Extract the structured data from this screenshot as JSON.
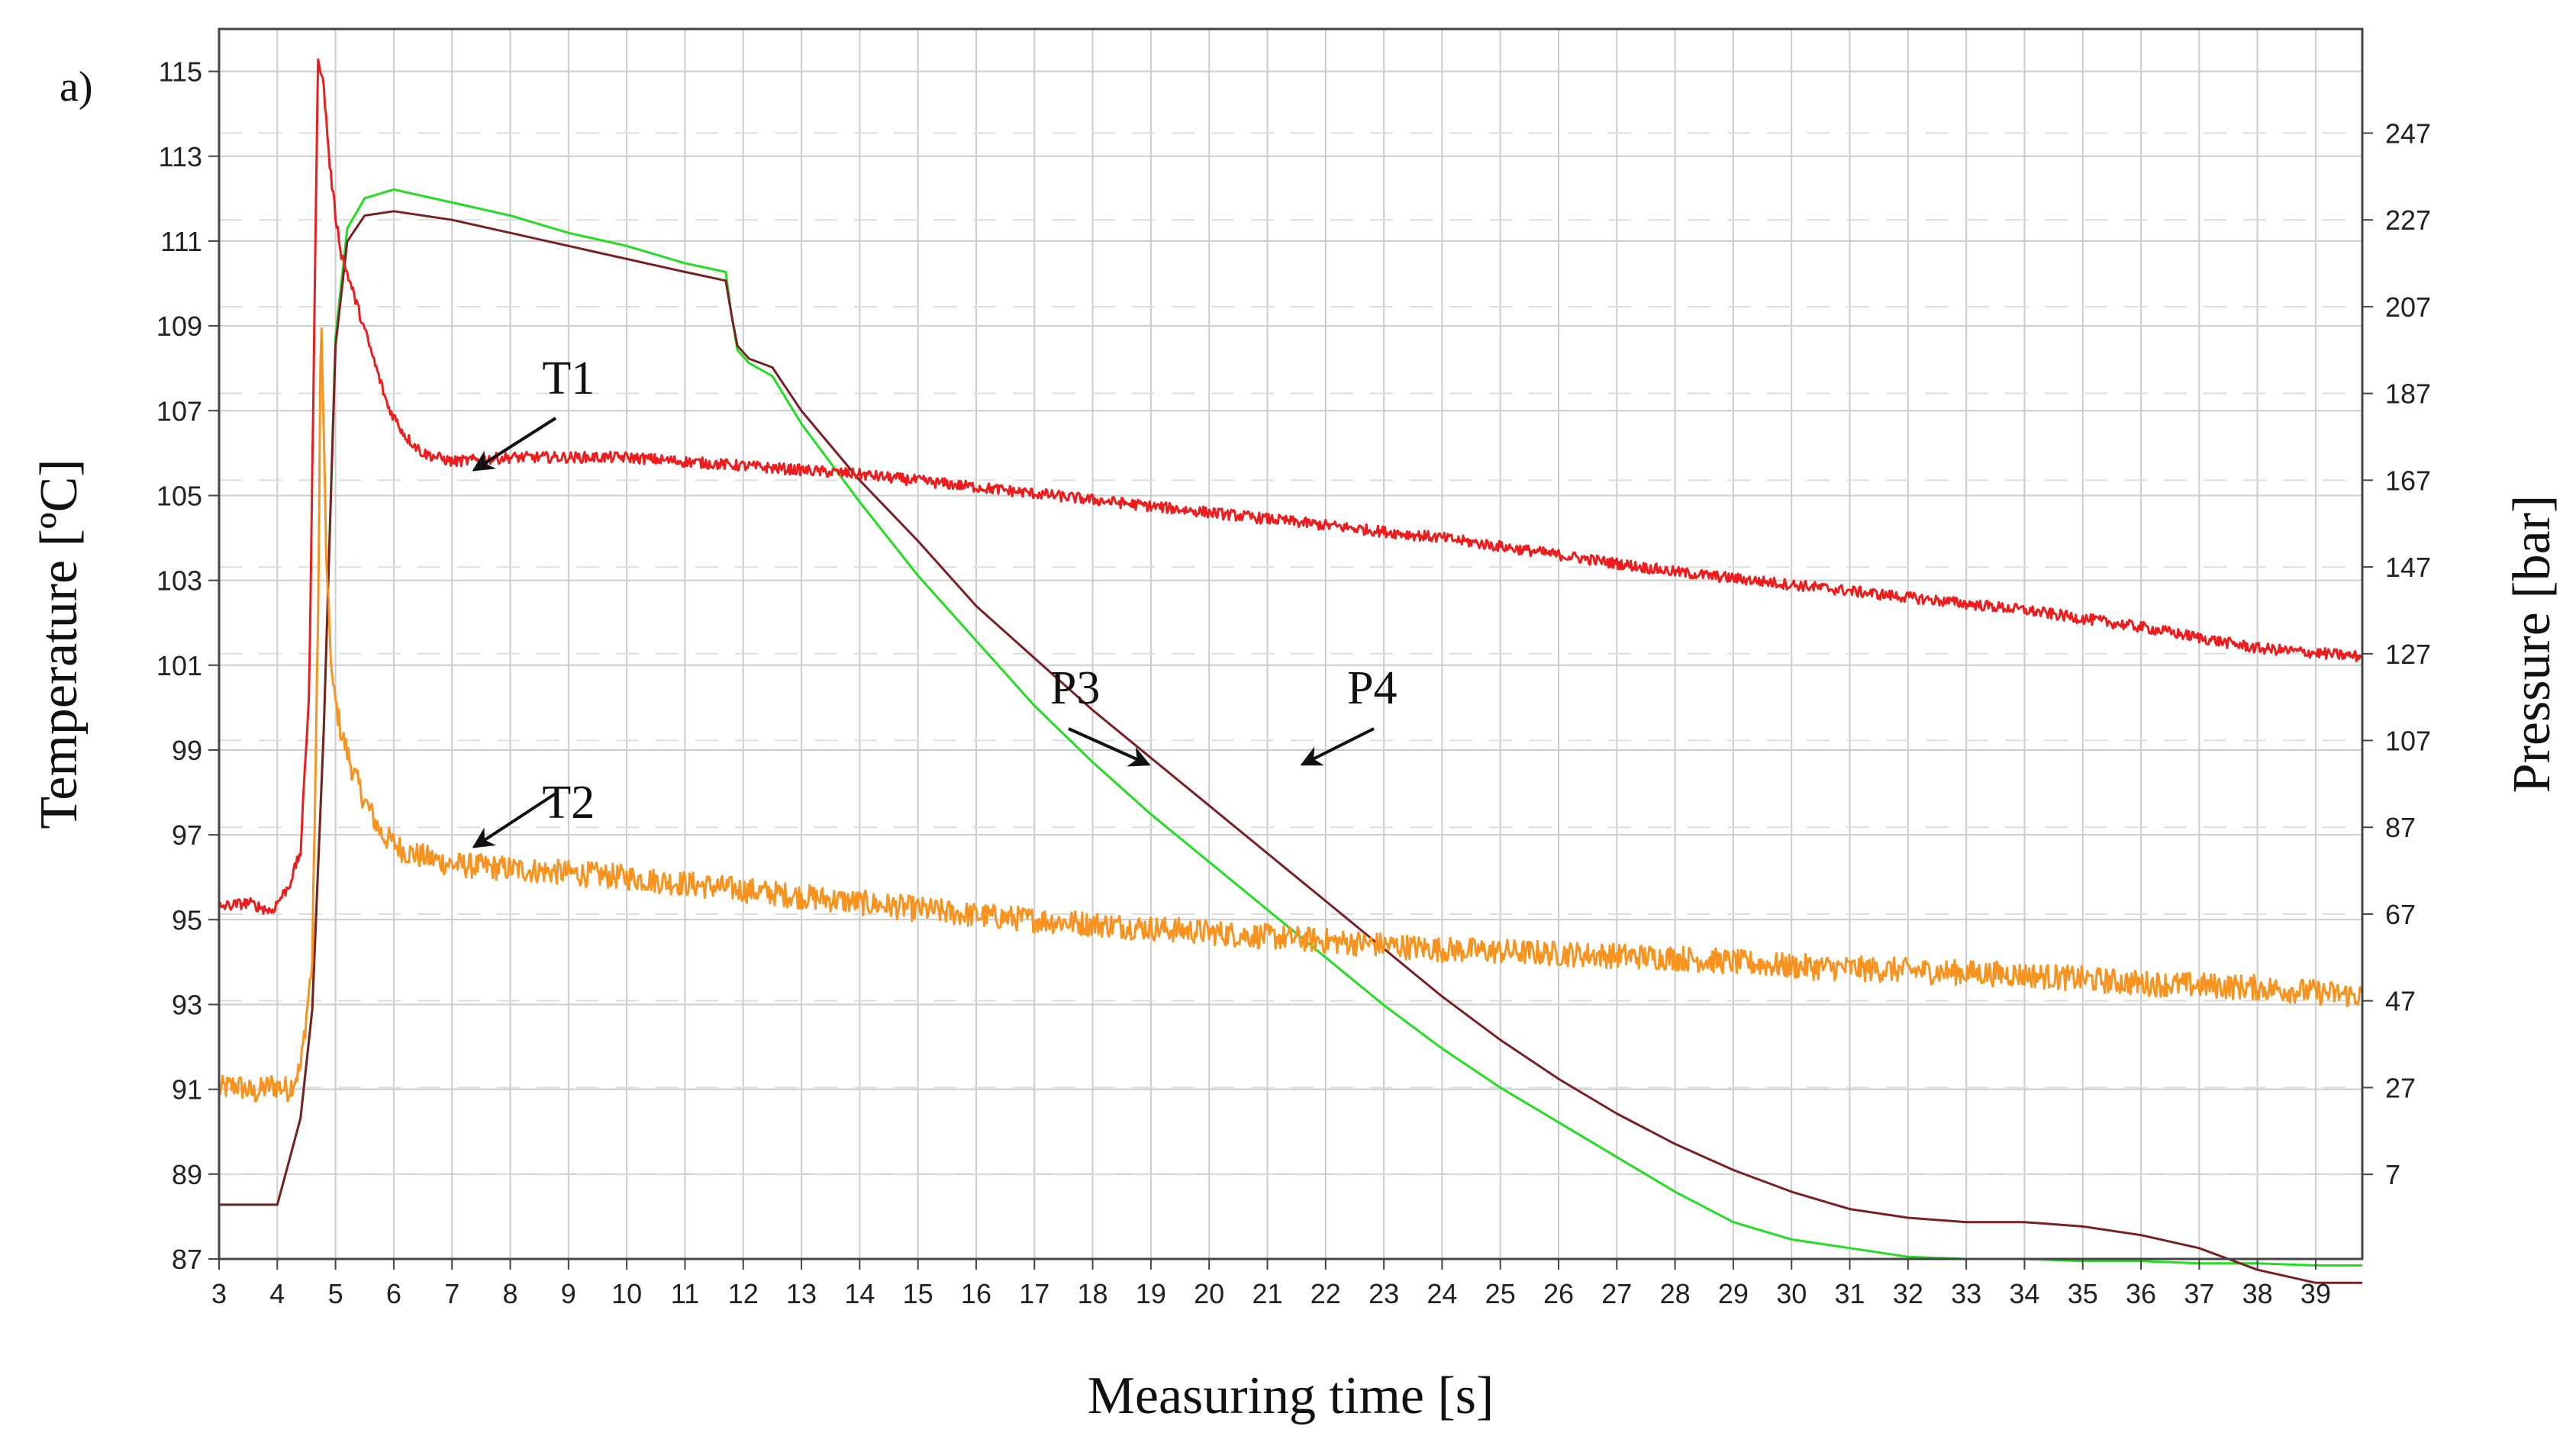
{
  "chart_data": {
    "type": "line",
    "panel_label": "a)",
    "xlabel": "Measuring time [s]",
    "ylabel_left": "Temperature [ºC]",
    "ylabel_right": "Pressure [bar]",
    "xlim": [
      3,
      39.8
    ],
    "ylim_left": [
      87,
      116
    ],
    "ylim_right": [
      -12.5,
      271
    ],
    "x_ticks": [
      3,
      4,
      5,
      6,
      7,
      8,
      9,
      10,
      11,
      12,
      13,
      14,
      15,
      16,
      17,
      18,
      19,
      20,
      21,
      22,
      23,
      24,
      25,
      26,
      27,
      28,
      29,
      30,
      31,
      32,
      33,
      34,
      35,
      36,
      37,
      38,
      39
    ],
    "y_left_ticks": [
      87,
      89,
      91,
      93,
      95,
      97,
      99,
      101,
      103,
      105,
      107,
      109,
      111,
      113,
      115
    ],
    "y_right_ticks": [
      7,
      27,
      47,
      67,
      87,
      107,
      127,
      147,
      167,
      187,
      207,
      227,
      247
    ],
    "grid": true,
    "colors": {
      "T1": "#ee1c1c",
      "T2": "#f7931e",
      "P3": "#22dd22",
      "P4": "#7a1f24",
      "grid_major": "#cccccc",
      "grid_dashed": "#dddddd",
      "axis": "#444444"
    },
    "series": [
      {
        "name": "T1",
        "axis": "left",
        "noise": 0.13,
        "x": [
          3,
          3.5,
          3.9,
          4.2,
          4.4,
          4.55,
          4.7,
          4.8,
          4.9,
          5.0,
          5.1,
          5.3,
          5.5,
          5.7,
          5.9,
          6.2,
          6.5,
          7.0,
          8.0,
          9.0,
          10.0,
          12.0,
          14.0,
          16.0,
          18.0,
          20.0,
          22.0,
          24.0,
          26.0,
          28.0,
          30.0,
          32.0,
          34.0,
          36.0,
          38.0,
          39.8
        ],
        "y": [
          95.3,
          95.4,
          95.2,
          95.8,
          96.6,
          100.5,
          115.4,
          114.6,
          112.8,
          111.6,
          110.7,
          109.8,
          108.9,
          108.0,
          107.1,
          106.4,
          106.0,
          105.8,
          105.9,
          105.9,
          105.9,
          105.7,
          105.5,
          105.2,
          104.9,
          104.6,
          104.3,
          104.0,
          103.6,
          103.2,
          102.9,
          102.6,
          102.3,
          101.9,
          101.4,
          101.2
        ]
      },
      {
        "name": "T2",
        "axis": "left",
        "noise": 0.3,
        "x": [
          3,
          3.3,
          3.6,
          3.9,
          4.2,
          4.4,
          4.6,
          4.7,
          4.75,
          4.85,
          4.95,
          5.1,
          5.3,
          5.5,
          5.8,
          6.2,
          7.0,
          8.0,
          9.0,
          10.0,
          12.0,
          14.0,
          16.0,
          18.0,
          20.0,
          22.0,
          24.0,
          26.0,
          28.0,
          30.0,
          32.0,
          34.0,
          36.0,
          38.0,
          39.8
        ],
        "y": [
          91.0,
          91.1,
          90.9,
          91.1,
          91.0,
          91.5,
          94.0,
          102.0,
          109.5,
          103.0,
          100.5,
          99.4,
          98.5,
          97.8,
          97.0,
          96.6,
          96.3,
          96.2,
          96.1,
          96.0,
          95.7,
          95.4,
          95.1,
          94.9,
          94.7,
          94.5,
          94.3,
          94.2,
          94.1,
          93.9,
          93.8,
          93.7,
          93.5,
          93.4,
          93.2
        ]
      },
      {
        "name": "P3",
        "axis": "right",
        "noise": 0,
        "x": [
          3,
          3.5,
          4.0,
          4.2,
          4.4,
          4.6,
          4.8,
          5.0,
          5.2,
          5.5,
          6.0,
          7.0,
          8.0,
          9.0,
          10.0,
          11.0,
          11.7,
          11.8,
          11.9,
          12.1,
          12.5,
          13.0,
          14.0,
          15.0,
          16.0,
          17.0,
          18.0,
          19.0,
          20.0,
          21.0,
          22.0,
          23.0,
          24.0,
          25.0,
          26.0,
          27.0,
          28.0,
          29.0,
          30.0,
          31.0,
          32.0,
          33.0,
          34.0,
          35.0,
          36.0,
          37.0,
          38.0,
          39.0,
          39.8
        ],
        "y": [
          0,
          0,
          0,
          10,
          20,
          45,
          110,
          200,
          225,
          232,
          234,
          231,
          228,
          224,
          221,
          217,
          215,
          205,
          197,
          194,
          191,
          180,
          162,
          145,
          130,
          115,
          102,
          90,
          79,
          68,
          57,
          46,
          36,
          27,
          19,
          11,
          3,
          -4,
          -8,
          -10,
          -12,
          -12.5,
          -12.5,
          -13,
          -13,
          -13.5,
          -13.5,
          -14,
          -14
        ]
      },
      {
        "name": "P4",
        "axis": "right",
        "noise": 0,
        "x": [
          3,
          3.5,
          4.0,
          4.2,
          4.4,
          4.6,
          4.8,
          5.0,
          5.2,
          5.5,
          6.0,
          7.0,
          8.0,
          9.0,
          10.0,
          11.0,
          11.7,
          11.8,
          11.9,
          12.1,
          12.5,
          13.0,
          14.0,
          15.0,
          16.0,
          17.0,
          18.0,
          19.0,
          20.0,
          21.0,
          22.0,
          23.0,
          24.0,
          25.0,
          26.0,
          27.0,
          28.0,
          29.0,
          30.0,
          31.0,
          32.0,
          33.0,
          34.0,
          35.0,
          36.0,
          37.0,
          38.0,
          39.0,
          39.8
        ],
        "y": [
          0,
          0,
          0,
          10,
          20,
          45,
          110,
          198,
          222,
          228,
          229,
          227,
          224,
          221,
          218,
          215,
          213,
          205,
          198,
          195,
          193,
          183,
          167,
          153,
          138,
          126,
          114,
          103,
          92,
          81,
          70,
          59,
          48,
          38,
          29,
          21,
          14,
          8,
          3,
          -1,
          -3,
          -4,
          -4,
          -5,
          -7,
          -10,
          -15,
          -18,
          -18
        ]
      }
    ],
    "annotations": [
      {
        "text": "T1",
        "x": 9.0,
        "y": 107.4
      },
      {
        "text": "T2",
        "x": 9.0,
        "y": 97.4
      },
      {
        "text": "P3",
        "x": 17.7,
        "y": 100.1
      },
      {
        "text": "P4",
        "x": 22.8,
        "y": 100.1
      }
    ]
  }
}
